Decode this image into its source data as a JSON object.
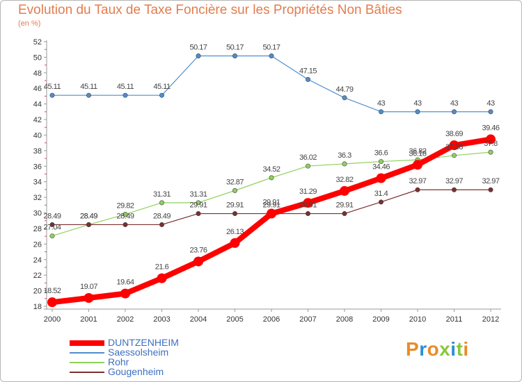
{
  "header": {
    "title": "Evolution du Taux de Taxe Foncière sur les Propriétés Non Bâties",
    "unit": "(en %)"
  },
  "logo": {
    "text": "Proxiti",
    "colors": [
      "#e98b2a",
      "#2b8fd6",
      "#e98b2a",
      "#8cc63f",
      "#2b8fd6",
      "#8cc63f",
      "#e98b2a"
    ]
  },
  "chart_data": {
    "type": "line",
    "title": "Evolution du Taux de Taxe Foncière sur les Propriétés Non Bâties",
    "ylabel": "(en %)",
    "xlabel": "",
    "x": [
      "2000",
      "2001",
      "2002",
      "2003",
      "2004",
      "2005",
      "2006",
      "2007",
      "2008",
      "2009",
      "2010",
      "2011",
      "2012"
    ],
    "ylim": [
      18,
      52
    ],
    "yticks": [
      18,
      20,
      22,
      24,
      26,
      28,
      30,
      32,
      34,
      36,
      38,
      40,
      42,
      44,
      46,
      48,
      50,
      52
    ],
    "grid": false,
    "legend": "bottom-left",
    "series": [
      {
        "name": "DUNTZENHEIM",
        "color": "#ff0000",
        "values": [
          18.52,
          19.07,
          19.64,
          21.6,
          23.76,
          26.13,
          29.91,
          31.29,
          32.82,
          34.46,
          36.18,
          38.69,
          39.46
        ],
        "labels": [
          "18.52",
          "19.07",
          "19.64",
          "21.6",
          "23.76",
          "26.13",
          "29.91",
          "31.29",
          "32.82",
          "34.46",
          "36.18",
          "38.69",
          "39.46"
        ]
      },
      {
        "name": "Saessolsheim",
        "color": "#4f8ecb",
        "values": [
          45.11,
          45.11,
          45.11,
          45.11,
          50.17,
          50.17,
          50.17,
          47.15,
          44.79,
          43,
          43,
          43,
          43
        ],
        "labels": [
          "45.11",
          "45.11",
          "45.11",
          "45.11",
          "50.17",
          "50.17",
          "50.17",
          "47.15",
          "44.79",
          "43",
          "43",
          "43",
          "43"
        ]
      },
      {
        "name": "Rohr",
        "color": "#8fd15b",
        "values": [
          27.04,
          28.49,
          29.82,
          31.31,
          31.31,
          32.87,
          34.52,
          36.02,
          36.3,
          36.6,
          36.82,
          37.38,
          37.8
        ],
        "labels": [
          "27.04",
          "28.49",
          "29.82",
          "31.31",
          "31.31",
          "32.87",
          "34.52",
          "36.02",
          "36.3",
          "36.6",
          "36.82",
          "37.38",
          "37.8"
        ]
      },
      {
        "name": "Gougenheim",
        "color": "#7b2e2e",
        "values": [
          28.49,
          28.49,
          28.49,
          28.49,
          29.91,
          29.91,
          29.91,
          29.91,
          29.91,
          31.4,
          32.97,
          32.97,
          32.97
        ],
        "labels": [
          "28.49",
          "28.49",
          "28.49",
          "28.49",
          "29.91",
          "29.91",
          "29.91",
          "29.91",
          "29.91",
          "31.4",
          "32.97",
          "32.97",
          "32.97"
        ]
      }
    ]
  }
}
